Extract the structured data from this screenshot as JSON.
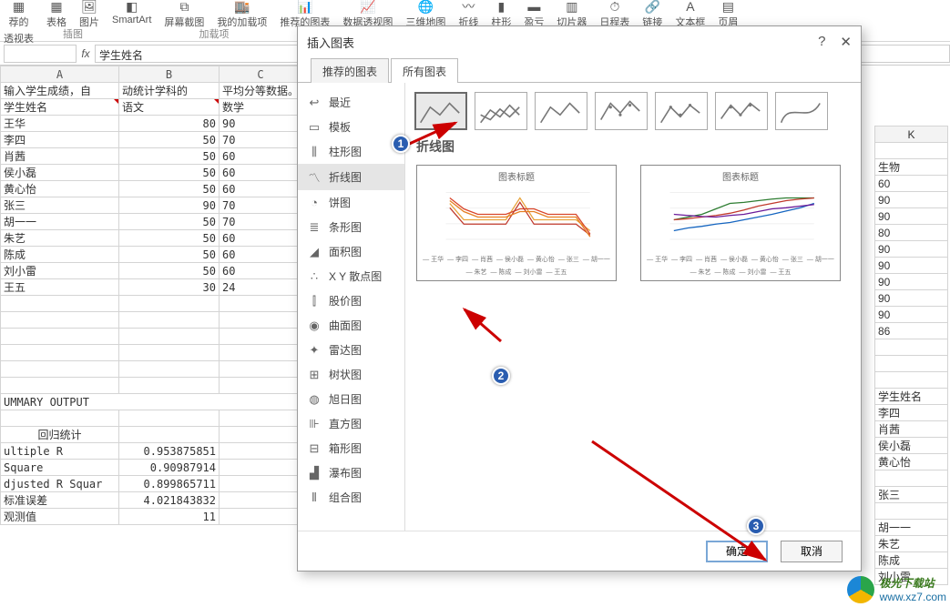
{
  "ribbon": {
    "items": [
      {
        "label": "荐的",
        "sub": "透视表"
      },
      {
        "label": "表格"
      },
      {
        "label": "图片"
      },
      {
        "label": "SmartArt"
      },
      {
        "label": "屏幕截图"
      },
      {
        "label": "我的加载项"
      },
      {
        "label": "推荐的图表"
      },
      {
        "label": "数据透视图"
      },
      {
        "label": "三维地图"
      },
      {
        "label": "折线"
      },
      {
        "label": "柱形"
      },
      {
        "label": "盈亏"
      },
      {
        "label": "切片器"
      },
      {
        "label": "日程表"
      },
      {
        "label": "链接"
      },
      {
        "label": "文本框"
      },
      {
        "label": "页眉"
      }
    ],
    "groups": [
      "插图",
      "加载项"
    ]
  },
  "formula_bar": {
    "value": "学生姓名"
  },
  "colHeaders": {
    "A": "A",
    "B": "B",
    "C": "C",
    "K": "K"
  },
  "leftGrid": {
    "r1": {
      "A": "输入学生成绩，自",
      "B": "动统计学科的",
      "C": "平均分等数据。"
    },
    "r2": {
      "A": "学生姓名",
      "B": "语文",
      "C": "数学"
    },
    "rows": [
      {
        "A": "王华",
        "B": "80",
        "C": "90"
      },
      {
        "A": "李四",
        "B": "50",
        "C": "70"
      },
      {
        "A": "肖茜",
        "B": "50",
        "C": "60"
      },
      {
        "A": "侯小磊",
        "B": "50",
        "C": "60"
      },
      {
        "A": "黄心怡",
        "B": "50",
        "C": "60"
      },
      {
        "A": "张三",
        "B": "90",
        "C": "70"
      },
      {
        "A": "胡一一",
        "B": "50",
        "C": "70"
      },
      {
        "A": "朱艺",
        "B": "50",
        "C": "60"
      },
      {
        "A": "陈成",
        "B": "50",
        "C": "60"
      },
      {
        "A": "刘小雷",
        "B": "50",
        "C": "60"
      },
      {
        "A": "王五",
        "B": "30",
        "C": "24"
      }
    ],
    "summaryTitle": "UMMARY OUTPUT",
    "regrTitle": "回归统计",
    "stats": [
      {
        "A": "ultiple R",
        "B": "0.953875851"
      },
      {
        "A": " Square",
        "B": "0.90987914"
      },
      {
        "A": "djusted R Squar",
        "B": "0.899865711"
      },
      {
        "A": "标准误差",
        "B": "4.021843832"
      },
      {
        "A": "观测值",
        "B": "11"
      }
    ]
  },
  "rightCol": {
    "header1": "生物",
    "vals": [
      "60",
      "90",
      "90",
      "80",
      "90",
      "90",
      "90",
      "90",
      "90",
      "86"
    ],
    "header2": "学生姓名",
    "names": [
      "李四",
      "肖茜",
      "侯小磊",
      "黄心怡",
      "",
      "张三",
      "",
      "胡一一",
      "朱艺",
      "陈成",
      "刘小雷"
    ]
  },
  "dialog": {
    "title": "插入图表",
    "tabs": {
      "rec": "推荐的图表",
      "all": "所有图表"
    },
    "categories": [
      {
        "icon": "↩",
        "label": "最近"
      },
      {
        "icon": "▭",
        "label": "模板"
      },
      {
        "icon": "⫼",
        "label": "柱形图"
      },
      {
        "icon": "〽",
        "label": "折线图",
        "selected": true
      },
      {
        "icon": "◔",
        "label": "饼图"
      },
      {
        "icon": "≣",
        "label": "条形图"
      },
      {
        "icon": "◢",
        "label": "面积图"
      },
      {
        "icon": "∴",
        "label": "X Y 散点图"
      },
      {
        "icon": "⫿",
        "label": "股价图"
      },
      {
        "icon": "◉",
        "label": "曲面图"
      },
      {
        "icon": "✦",
        "label": "雷达图"
      },
      {
        "icon": "⊞",
        "label": "树状图"
      },
      {
        "icon": "◍",
        "label": "旭日图"
      },
      {
        "icon": "⊪",
        "label": "直方图"
      },
      {
        "icon": "⊟",
        "label": "箱形图"
      },
      {
        "icon": "▟",
        "label": "瀑布图"
      },
      {
        "icon": "⫴",
        "label": "组合图"
      }
    ],
    "subtypeTitle": "折线图",
    "preview": {
      "title": "图表标题"
    },
    "buttons": {
      "ok": "确定",
      "cancel": "取消"
    }
  },
  "watermark": {
    "brand": "极光下载站",
    "url": "www.xz7.com"
  },
  "chart": {
    "colors": [
      "#e8a33b",
      "#d9462b",
      "#c0392b",
      "#e67e22",
      "#8e5c2e",
      "#5a3d1e",
      "#3b2e1e",
      "#7f6a4d"
    ],
    "colors2": [
      "#2e7d32",
      "#c0392b",
      "#1565c0",
      "#6a1b9a",
      "#00838f"
    ],
    "yTicks": [
      0,
      20,
      40,
      60,
      80,
      100
    ]
  }
}
